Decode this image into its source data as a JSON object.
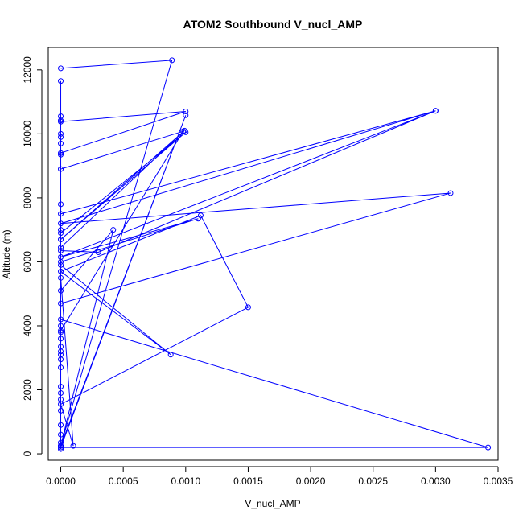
{
  "chart_data": {
    "type": "line",
    "title": "ATOM2 Southbound V_nucl_AMP",
    "xlabel": "V_nucl_AMP",
    "ylabel": "Altitude (m)",
    "xlim": [
      -0.0001,
      0.0035
    ],
    "ylim": [
      -200,
      12700
    ],
    "x_ticks": [
      0.0,
      0.0005,
      0.001,
      0.0015,
      0.002,
      0.0025,
      0.003,
      0.0035
    ],
    "x_tick_labels": [
      "0.0000",
      "0.0005",
      "0.0010",
      "0.0015",
      "0.0020",
      "0.0025",
      "0.0030",
      "0.0035"
    ],
    "y_ticks": [
      0,
      2000,
      4000,
      6000,
      8000,
      10000,
      12000
    ],
    "y_tick_labels": [
      "0",
      "2000",
      "4000",
      "6000",
      "8000",
      "10000",
      "12000"
    ],
    "grid": false,
    "marker": "open-circle",
    "series_color": "#0000ff",
    "series": [
      {
        "name": "",
        "points": [
          [
            0,
            12050
          ],
          [
            0.00089,
            12300
          ],
          [
            0,
            250
          ],
          [
            0,
            11650
          ],
          [
            0,
            10550
          ],
          [
            0,
            10420
          ],
          [
            0,
            10380
          ],
          [
            0.001,
            10700
          ],
          [
            0,
            9400
          ],
          [
            0,
            10000
          ],
          [
            0,
            9900
          ],
          [
            0,
            9700
          ],
          [
            0,
            9350
          ],
          [
            0,
            8900
          ],
          [
            0.00098,
            10080
          ],
          [
            0,
            3850
          ],
          [
            0,
            7800
          ],
          [
            0,
            7500
          ],
          [
            0.003,
            10720
          ],
          [
            0,
            7200
          ],
          [
            0.00312,
            8150
          ],
          [
            0,
            4700
          ],
          [
            0,
            7000
          ],
          [
            0,
            6900
          ],
          [
            0.001,
            10050
          ],
          [
            0,
            6700
          ],
          [
            0.00099,
            10100
          ],
          [
            0,
            6450
          ],
          [
            0,
            6350
          ],
          [
            0.0003,
            6300
          ],
          [
            0.003,
            10720
          ],
          [
            0,
            6150
          ],
          [
            0.0011,
            7350
          ],
          [
            0,
            6000
          ],
          [
            0,
            5900
          ],
          [
            0.00088,
            3100
          ],
          [
            0,
            5700
          ],
          [
            0.00112,
            7450
          ],
          [
            0.0015,
            4580
          ],
          [
            0,
            1550
          ],
          [
            0.0001,
            250
          ],
          [
            0,
            5500
          ],
          [
            0,
            5100
          ],
          [
            0.00042,
            7000
          ],
          [
            0,
            250
          ],
          [
            0.001,
            10580
          ],
          [
            0,
            200
          ],
          [
            0.00342,
            200
          ],
          [
            0,
            4200
          ],
          [
            0,
            3100
          ],
          [
            0,
            4000
          ],
          [
            0,
            3800
          ],
          [
            0,
            3600
          ],
          [
            0,
            3350
          ],
          [
            0,
            3200
          ],
          [
            0,
            2950
          ],
          [
            0,
            2700
          ],
          [
            0,
            2100
          ],
          [
            0,
            1900
          ],
          [
            0,
            1700
          ],
          [
            0,
            1350
          ],
          [
            0,
            900
          ],
          [
            0,
            600
          ],
          [
            0,
            350
          ],
          [
            0,
            150
          ]
        ]
      }
    ]
  }
}
